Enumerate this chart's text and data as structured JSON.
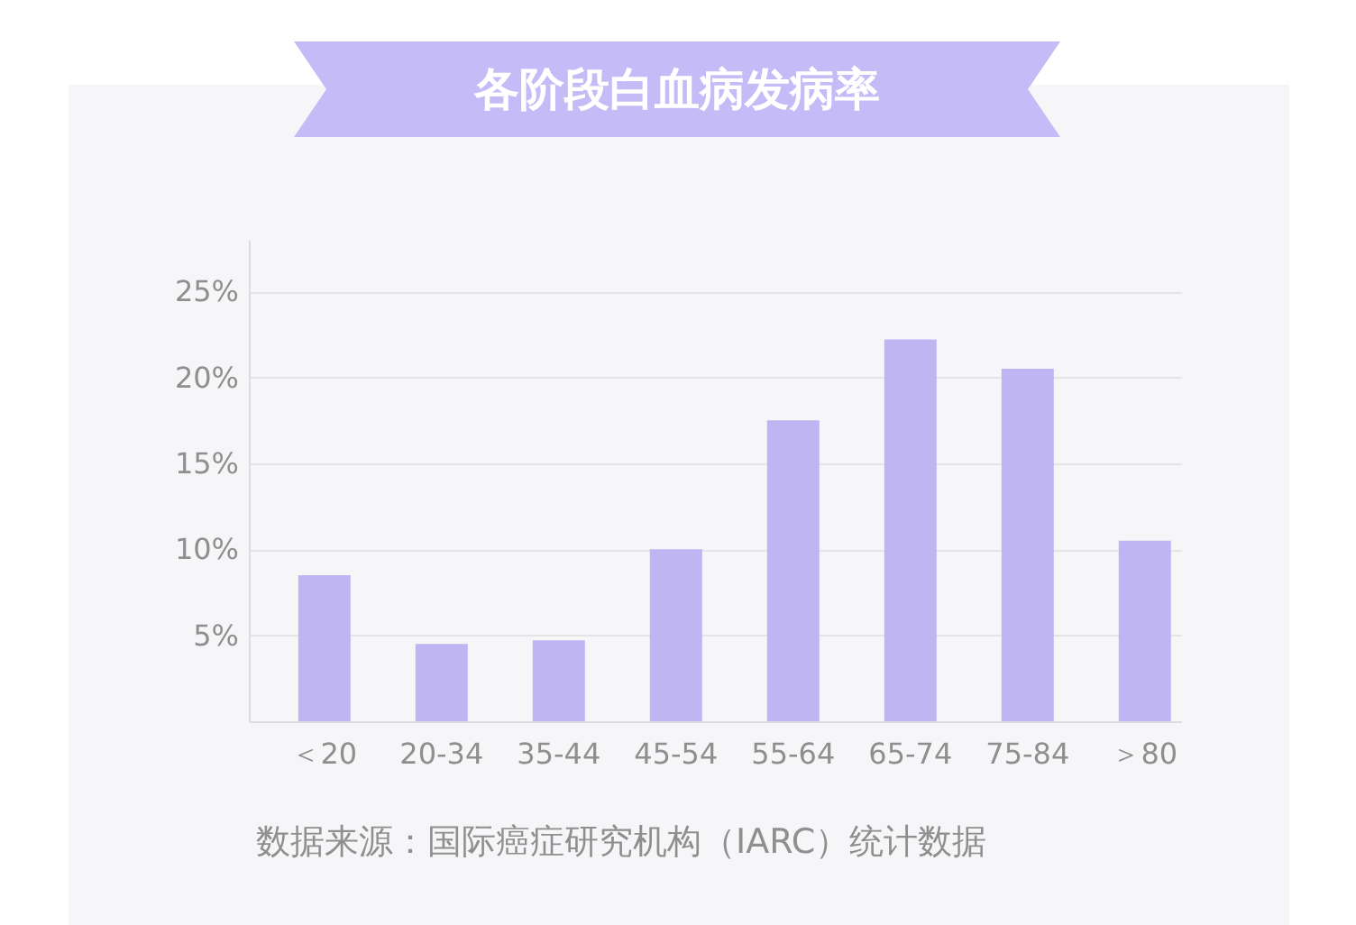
{
  "chart_data": {
    "type": "bar",
    "title": "各阶段白血病发病率",
    "categories": [
      "＜20",
      "20-34",
      "35-44",
      "45-54",
      "55-64",
      "65-74",
      "75-84",
      "＞80"
    ],
    "values": [
      8.5,
      4.5,
      4.7,
      10.0,
      17.5,
      22.2,
      20.5,
      10.5
    ],
    "color": "#bfb5f3",
    "ylim": [
      0,
      28
    ],
    "yticks": [
      {
        "value": 5,
        "label": "5%"
      },
      {
        "value": 10,
        "label": "10%"
      },
      {
        "value": 15,
        "label": "15%"
      },
      {
        "value": 20,
        "label": "20%"
      },
      {
        "value": 25,
        "label": "25%"
      }
    ],
    "grid": "y",
    "annotations": [
      "数据来源：国际癌症研究机构（IARC）统计数据"
    ]
  }
}
